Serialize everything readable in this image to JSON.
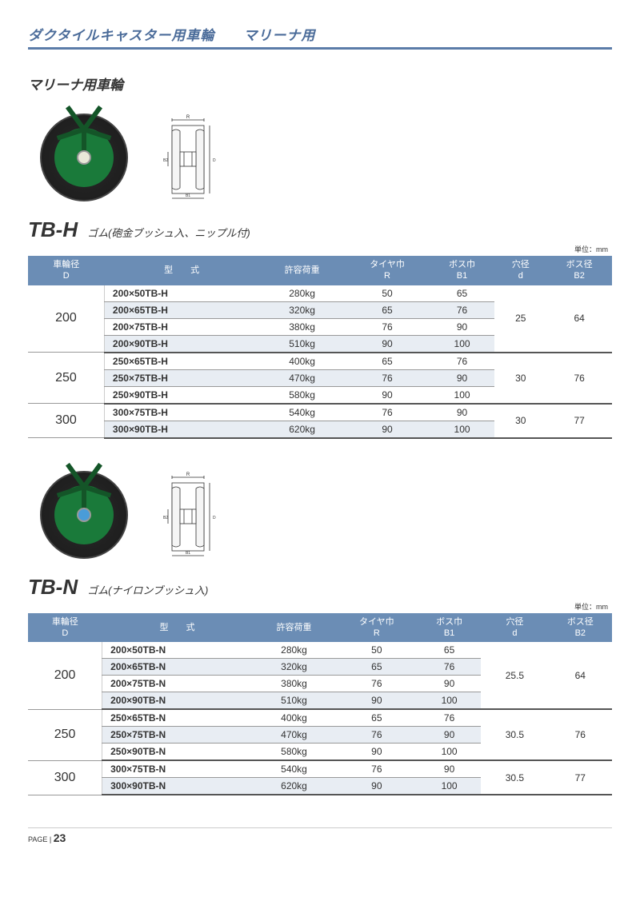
{
  "header": {
    "title": "ダクタイルキャスター用車輪　　マリーナ用"
  },
  "section": {
    "title": "マリーナ用車輪"
  },
  "products": [
    {
      "code": "TB-H",
      "desc": "ゴム(砲金ブッシュ入、ニップル付)",
      "unit": "単位：mm",
      "hubClass": "",
      "columns": [
        "車輪径\nD",
        "型　　式",
        "許容荷重",
        "タイヤ巾\nR",
        "ボス巾\nB1",
        "穴径\nd",
        "ボス径\nB2"
      ],
      "groups": [
        {
          "dia": "200",
          "d": "25",
          "b2": "64",
          "rows": [
            {
              "model": "200×50TB-H",
              "load": "280kg",
              "r": "50",
              "b1": "65"
            },
            {
              "model": "200×65TB-H",
              "load": "320kg",
              "r": "65",
              "b1": "76"
            },
            {
              "model": "200×75TB-H",
              "load": "380kg",
              "r": "76",
              "b1": "90"
            },
            {
              "model": "200×90TB-H",
              "load": "510kg",
              "r": "90",
              "b1": "100"
            }
          ]
        },
        {
          "dia": "250",
          "d": "30",
          "b2": "76",
          "rows": [
            {
              "model": "250×65TB-H",
              "load": "400kg",
              "r": "65",
              "b1": "76"
            },
            {
              "model": "250×75TB-H",
              "load": "470kg",
              "r": "76",
              "b1": "90"
            },
            {
              "model": "250×90TB-H",
              "load": "580kg",
              "r": "90",
              "b1": "100"
            }
          ]
        },
        {
          "dia": "300",
          "d": "30",
          "b2": "77",
          "rows": [
            {
              "model": "300×75TB-H",
              "load": "540kg",
              "r": "76",
              "b1": "90"
            },
            {
              "model": "300×90TB-H",
              "load": "620kg",
              "r": "90",
              "b1": "100"
            }
          ]
        }
      ]
    },
    {
      "code": "TB-N",
      "desc": "ゴム(ナイロンブッシュ入)",
      "unit": "単位：mm",
      "hubClass": "hub-blue",
      "columns": [
        "車輪径\nD",
        "型　　式",
        "許容荷重",
        "タイヤ巾\nR",
        "ボス巾\nB1",
        "穴径\nd",
        "ボス径\nB2"
      ],
      "groups": [
        {
          "dia": "200",
          "d": "25.5",
          "b2": "64",
          "rows": [
            {
              "model": "200×50TB-N",
              "load": "280kg",
              "r": "50",
              "b1": "65"
            },
            {
              "model": "200×65TB-N",
              "load": "320kg",
              "r": "65",
              "b1": "76"
            },
            {
              "model": "200×75TB-N",
              "load": "380kg",
              "r": "76",
              "b1": "90"
            },
            {
              "model": "200×90TB-N",
              "load": "510kg",
              "r": "90",
              "b1": "100"
            }
          ]
        },
        {
          "dia": "250",
          "d": "30.5",
          "b2": "76",
          "rows": [
            {
              "model": "250×65TB-N",
              "load": "400kg",
              "r": "65",
              "b1": "76"
            },
            {
              "model": "250×75TB-N",
              "load": "470kg",
              "r": "76",
              "b1": "90"
            },
            {
              "model": "250×90TB-N",
              "load": "580kg",
              "r": "90",
              "b1": "100"
            }
          ]
        },
        {
          "dia": "300",
          "d": "30.5",
          "b2": "77",
          "rows": [
            {
              "model": "300×75TB-N",
              "load": "540kg",
              "r": "76",
              "b1": "90"
            },
            {
              "model": "300×90TB-N",
              "load": "620kg",
              "r": "90",
              "b1": "100"
            }
          ]
        }
      ]
    }
  ],
  "footer": {
    "label": "PAGE |",
    "num": "23"
  }
}
